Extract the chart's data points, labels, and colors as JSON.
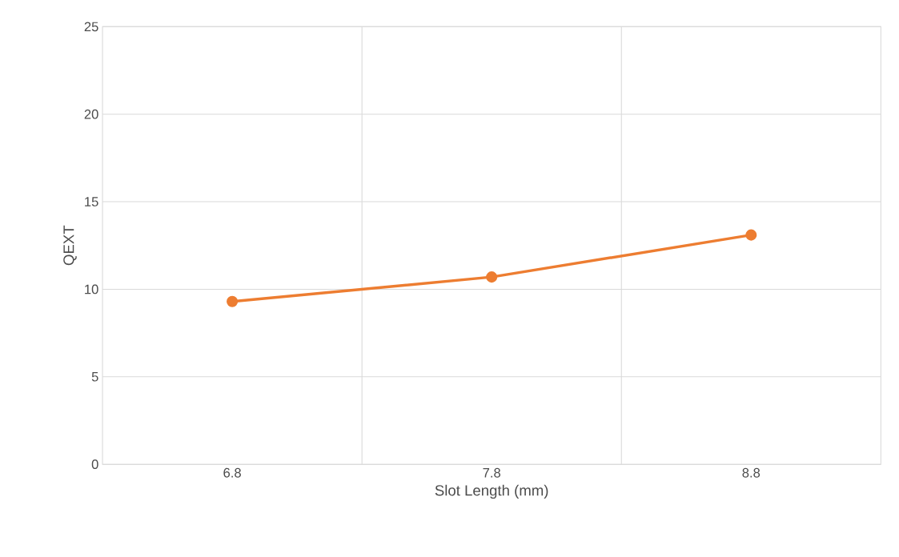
{
  "chart_data": {
    "type": "line",
    "xlabel": "Slot Length (mm)",
    "ylabel": "QEXT",
    "categories": [
      "6.8",
      "7.8",
      "8.8"
    ],
    "series": [
      {
        "color": "#ed7d31",
        "values": [
          9.3,
          10.7,
          13.1
        ]
      }
    ],
    "ylim": [
      0,
      25
    ],
    "yticks": [
      0,
      5,
      10,
      15,
      20,
      25
    ],
    "grid": true,
    "marker": "circle",
    "line_style": "solid"
  }
}
